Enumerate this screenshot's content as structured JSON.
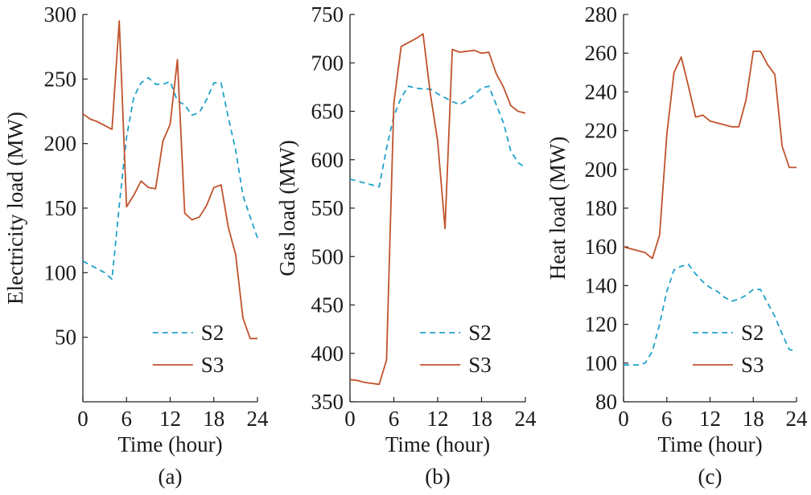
{
  "chart_data": [
    {
      "type": "line",
      "panel_label": "(a)",
      "xlabel": "Time (hour)",
      "ylabel": "Electricity load (MW)",
      "xlim": [
        0,
        24
      ],
      "ylim": [
        0,
        300
      ],
      "xticks": [
        "0",
        "6",
        "12",
        "18",
        "24"
      ],
      "yticks": [
        "50",
        "100",
        "150",
        "200",
        "250",
        "300"
      ],
      "grid": false,
      "legend_position": "bottom-right",
      "series": [
        {
          "name": "S2",
          "color": "#1fa2c9",
          "style": "dashed",
          "x": [
            0,
            1,
            2,
            3,
            4,
            5,
            6,
            7,
            8,
            9,
            10,
            11,
            12,
            13,
            14,
            15,
            16,
            17,
            18,
            19,
            20,
            21,
            22,
            23,
            24
          ],
          "y": [
            109,
            106,
            103,
            100,
            95,
            152,
            205,
            236,
            247,
            251,
            246,
            246,
            248,
            233,
            230,
            222,
            224,
            234,
            247,
            247,
            220,
            195,
            160,
            143,
            127
          ]
        },
        {
          "name": "S3",
          "color": "#c0522c",
          "style": "solid",
          "x": [
            0,
            1,
            2,
            3,
            4,
            5,
            6,
            7,
            8,
            9,
            10,
            11,
            12,
            13,
            14,
            15,
            16,
            17,
            18,
            19,
            20,
            21,
            22,
            23,
            24
          ],
          "y": [
            223,
            219,
            217,
            214,
            211,
            295,
            151,
            160,
            171,
            166,
            165,
            202,
            215,
            265,
            146,
            141,
            143,
            152,
            166,
            168,
            135,
            114,
            65,
            49,
            49
          ]
        }
      ]
    },
    {
      "type": "line",
      "panel_label": "(b)",
      "xlabel": "Time (hour)",
      "ylabel": "Gas load (MW)",
      "xlim": [
        0,
        24
      ],
      "ylim": [
        350,
        750
      ],
      "xticks": [
        "0",
        "6",
        "12",
        "18",
        "24"
      ],
      "yticks": [
        "350",
        "400",
        "450",
        "500",
        "550",
        "600",
        "650",
        "700",
        "750"
      ],
      "grid": false,
      "legend_position": "bottom-right",
      "series": [
        {
          "name": "S2",
          "color": "#1fa2c9",
          "style": "dashed",
          "x": [
            0,
            1,
            2,
            3,
            4,
            5,
            6,
            7,
            8,
            9,
            10,
            11,
            12,
            13,
            14,
            15,
            16,
            17,
            18,
            19,
            20,
            21,
            22,
            23,
            24
          ],
          "y": [
            580,
            578,
            576,
            574,
            572,
            612,
            645,
            664,
            676,
            674,
            673,
            673,
            668,
            664,
            660,
            657,
            661,
            667,
            674,
            676,
            657,
            638,
            609,
            597,
            592
          ]
        },
        {
          "name": "S3",
          "color": "#c0522c",
          "style": "solid",
          "x": [
            0,
            1,
            2,
            3,
            4,
            5,
            6,
            7,
            8,
            9,
            10,
            11,
            12,
            13,
            14,
            15,
            16,
            17,
            18,
            19,
            20,
            21,
            22,
            23,
            24
          ],
          "y": [
            373,
            372,
            370,
            369,
            368,
            393,
            658,
            717,
            721,
            725,
            730,
            668,
            619,
            529,
            714,
            711,
            712,
            713,
            710,
            711,
            689,
            675,
            656,
            650,
            648
          ]
        }
      ]
    },
    {
      "type": "line",
      "panel_label": "(c)",
      "xlabel": "Time (hour)",
      "ylabel": "Heat load (MW)",
      "xlim": [
        0,
        24
      ],
      "ylim": [
        80,
        280
      ],
      "xticks": [
        "0",
        "6",
        "12",
        "18",
        "24"
      ],
      "yticks": [
        "80",
        "100",
        "120",
        "140",
        "160",
        "180",
        "200",
        "220",
        "240",
        "260",
        "280"
      ],
      "grid": false,
      "legend_position": "bottom-right",
      "series": [
        {
          "name": "S2",
          "color": "#1fa2c9",
          "style": "dashed",
          "x": [
            0,
            1,
            2,
            3,
            4,
            5,
            6,
            7,
            8,
            9,
            10,
            11,
            12,
            13,
            14,
            15,
            16,
            17,
            18,
            19,
            20,
            21,
            22,
            23,
            24
          ],
          "y": [
            99,
            99,
            99,
            100,
            106,
            120,
            137,
            148,
            150,
            151,
            146,
            142,
            139,
            137,
            134,
            132,
            133,
            135,
            138,
            138,
            131,
            124,
            115,
            107,
            106
          ]
        },
        {
          "name": "S3",
          "color": "#c0522c",
          "style": "solid",
          "x": [
            0,
            1,
            2,
            3,
            4,
            5,
            6,
            7,
            8,
            9,
            10,
            11,
            12,
            13,
            14,
            15,
            16,
            17,
            18,
            19,
            20,
            21,
            22,
            23,
            24
          ],
          "y": [
            160,
            159,
            158,
            157,
            154,
            166,
            218,
            250,
            258,
            243,
            227,
            228,
            225,
            224,
            223,
            222,
            222,
            236,
            261,
            261,
            254,
            249,
            212,
            201,
            201
          ]
        }
      ]
    }
  ]
}
